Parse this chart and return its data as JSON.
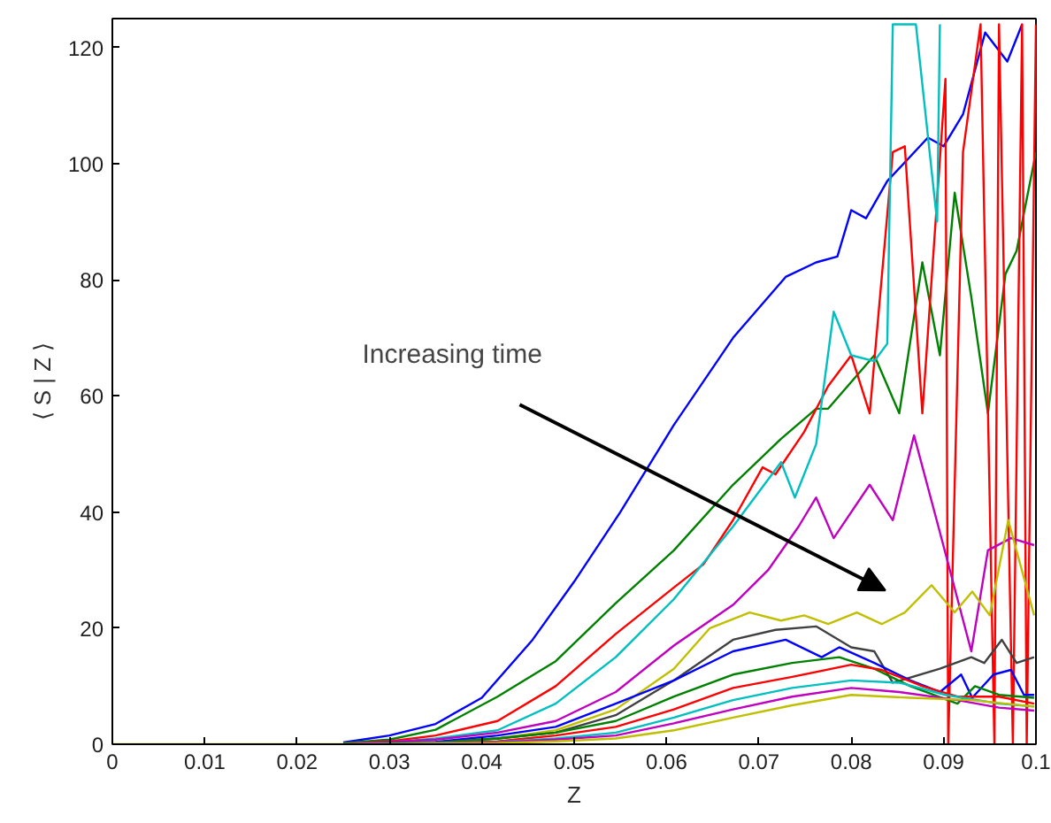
{
  "chart_data": {
    "type": "line",
    "xlabel": "Z",
    "ylabel": "⟨ S | Z ⟩",
    "xlim": [
      0,
      0.1
    ],
    "ylim": [
      0,
      125
    ],
    "xticks": [
      0,
      0.01,
      0.02,
      0.03,
      0.04,
      0.05,
      0.06,
      0.07,
      0.08,
      0.09,
      0.1
    ],
    "yticks": [
      0,
      20,
      40,
      60,
      80,
      100,
      120
    ],
    "grid": false,
    "marker": "none",
    "line_style": "solid",
    "annotations": [
      "Increasing time"
    ],
    "series": [
      {
        "color": "#0000ff",
        "x": [
          0.025,
          0.03,
          0.035,
          0.04,
          0.0455,
          0.05,
          0.055,
          0.0608,
          0.0672,
          0.0729,
          0.0762,
          0.0785,
          0.08,
          0.0816,
          0.0839,
          0.0883,
          0.09,
          0.0921,
          0.0945,
          0.0969,
          0.0985
        ],
        "values": [
          0.3,
          1.5,
          3.5,
          8,
          18,
          28,
          40,
          55,
          70,
          80.5,
          83,
          84,
          92,
          90.6,
          97,
          104.5,
          103,
          108.5,
          122.6,
          117.6,
          124
        ]
      },
      {
        "color": "#008000",
        "x": [
          0.025,
          0.03,
          0.035,
          0.0417,
          0.048,
          0.0545,
          0.0608,
          0.0672,
          0.0724,
          0.0762,
          0.0775,
          0.0825,
          0.0852,
          0.0877,
          0.0896,
          0.0912,
          0.093,
          0.0948,
          0.0967,
          0.0979,
          0.1
        ],
        "values": [
          0.2,
          0.8,
          2.5,
          8.2,
          14.3,
          24.3,
          33.4,
          44.7,
          52.6,
          57.8,
          57.8,
          67,
          57,
          83,
          67,
          95,
          77,
          57,
          81,
          85,
          102
        ]
      },
      {
        "color": "#ff0000",
        "x": [
          0.025,
          0.03,
          0.035,
          0.0417,
          0.048,
          0.0545,
          0.0608,
          0.064,
          0.0672,
          0.0704,
          0.0718,
          0.0749,
          0.0775,
          0.08,
          0.082,
          0.0845,
          0.0858,
          0.0877,
          0.0902,
          0.0905,
          0.0921,
          0.094,
          0.0955,
          0.096,
          0.0975,
          0.0985,
          0.099,
          0.1
        ],
        "values": [
          0.1,
          0.5,
          1.5,
          4,
          10,
          19,
          27,
          31,
          38.6,
          47.7,
          46.5,
          53.8,
          61.7,
          67,
          57,
          102,
          103,
          57,
          114.6,
          0,
          102,
          124,
          0,
          124,
          0,
          124,
          0,
          124
        ]
      },
      {
        "color": "#00bfbf",
        "x": [
          0.025,
          0.03,
          0.035,
          0.0417,
          0.048,
          0.0545,
          0.0608,
          0.0672,
          0.0724,
          0.0739,
          0.0762,
          0.0781,
          0.08,
          0.0825,
          0.0839,
          0.0845,
          0.087,
          0.0893,
          0.0896
        ],
        "values": [
          0.1,
          0.3,
          1,
          2.4,
          7,
          15,
          25,
          37.5,
          48.6,
          42.5,
          51.7,
          74.5,
          67,
          66,
          69,
          124,
          124,
          90,
          124
        ]
      },
      {
        "color": "#bf00bf",
        "x": [
          0.025,
          0.035,
          0.0417,
          0.048,
          0.0545,
          0.0608,
          0.0672,
          0.071,
          0.0743,
          0.0762,
          0.0781,
          0.082,
          0.0845,
          0.0868,
          0.0896,
          0.093,
          0.0948,
          0.0973,
          0.0998
        ],
        "values": [
          0,
          0.8,
          2,
          4,
          9,
          17,
          24,
          30,
          37.5,
          42.5,
          35.5,
          44.7,
          38.6,
          53.2,
          36.5,
          16,
          33.4,
          35.5,
          34.3
        ]
      },
      {
        "color": "#bfbf00",
        "x": [
          0,
          0.025,
          0.035,
          0.0417,
          0.048,
          0.0545,
          0.0608,
          0.0647,
          0.069,
          0.0724,
          0.0749,
          0.0775,
          0.0806,
          0.0833,
          0.0858,
          0.0887,
          0.0912,
          0.0931,
          0.095,
          0.097,
          0.0998
        ],
        "values": [
          0,
          0,
          0.4,
          1,
          2.4,
          6,
          13,
          20,
          22.7,
          21.3,
          22.2,
          20.7,
          22.7,
          20.7,
          22.7,
          27.4,
          22.7,
          26.3,
          22.2,
          38.6,
          22.2
        ]
      },
      {
        "color": "#404040",
        "x": [
          0.025,
          0.035,
          0.0417,
          0.048,
          0.0545,
          0.0608,
          0.0672,
          0.0718,
          0.0762,
          0.08,
          0.0825,
          0.0845,
          0.0896,
          0.093,
          0.0944,
          0.0963,
          0.0979,
          0.0998
        ],
        "values": [
          0,
          0.3,
          1,
          2,
          5,
          11,
          18,
          19.7,
          20.3,
          16.7,
          16,
          10.6,
          13,
          15,
          14,
          18,
          14,
          15
        ]
      },
      {
        "color": "#0000ff",
        "x": [
          0.025,
          0.035,
          0.0417,
          0.048,
          0.0545,
          0.0608,
          0.0672,
          0.0729,
          0.0768,
          0.0787,
          0.0825,
          0.0864,
          0.0896,
          0.0919,
          0.0931,
          0.0954,
          0.0973,
          0.0987,
          0.0998
        ],
        "values": [
          0,
          0.4,
          1.5,
          3,
          7,
          11,
          16,
          18,
          15,
          16.7,
          14,
          11,
          9,
          12,
          8,
          12,
          12.8,
          8.5,
          8.5
        ]
      },
      {
        "color": "#008000",
        "x": [
          0.025,
          0.035,
          0.0417,
          0.048,
          0.0545,
          0.0608,
          0.0672,
          0.0736,
          0.0787,
          0.0825,
          0.0864,
          0.0915,
          0.0934,
          0.096,
          0.0998
        ],
        "values": [
          0,
          0.3,
          1,
          2,
          4,
          8.2,
          12,
          14,
          15,
          13,
          10,
          7,
          10,
          8.5,
          8
        ]
      },
      {
        "color": "#ff0000",
        "x": [
          0.025,
          0.035,
          0.0417,
          0.048,
          0.0545,
          0.0608,
          0.0672,
          0.0736,
          0.08,
          0.0833,
          0.0877,
          0.0915,
          0.096,
          0.0998
        ],
        "values": [
          0,
          0.2,
          0.5,
          1.5,
          3,
          6,
          9.7,
          11.6,
          13.7,
          12.8,
          10,
          8.2,
          8.2,
          7
        ]
      },
      {
        "color": "#00bfbf",
        "x": [
          0.025,
          0.0417,
          0.048,
          0.0545,
          0.0608,
          0.0672,
          0.0736,
          0.08,
          0.0852,
          0.0902,
          0.096,
          0.0998
        ],
        "values": [
          0,
          0.4,
          1,
          2,
          4.6,
          7.6,
          9.7,
          11,
          10.6,
          8.5,
          7,
          6.5
        ]
      },
      {
        "color": "#bf00bf",
        "x": [
          0.025,
          0.0417,
          0.048,
          0.0545,
          0.0608,
          0.0672,
          0.0736,
          0.08,
          0.0852,
          0.0915,
          0.096,
          0.0998
        ],
        "values": [
          0,
          0.3,
          0.8,
          1.5,
          3.6,
          6,
          8.2,
          9.7,
          9,
          7.6,
          6.3,
          5.8
        ]
      },
      {
        "color": "#bfbf00",
        "x": [
          0.025,
          0.0417,
          0.048,
          0.0545,
          0.0608,
          0.0672,
          0.0736,
          0.08,
          0.0864,
          0.093,
          0.0998
        ],
        "values": [
          0,
          0.2,
          0.5,
          1,
          2.4,
          4.6,
          6.7,
          8.5,
          8,
          7.6,
          6.5
        ]
      }
    ]
  }
}
